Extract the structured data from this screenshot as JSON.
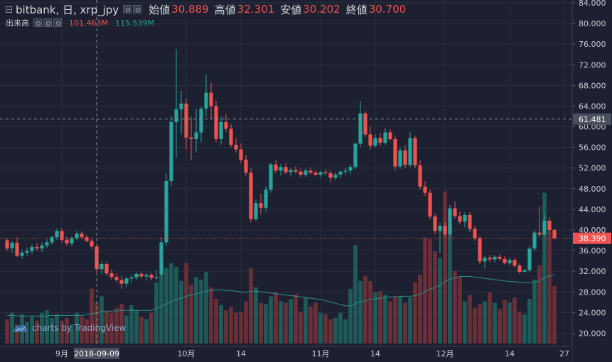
{
  "legend": {
    "symbol": "bitbank, 日, xrp_jpy",
    "open_label": "始値",
    "open_value": "30.889",
    "high_label": "高値",
    "high_value": "32.301",
    "low_label": "安値",
    "low_value": "30.202",
    "close_label": "終値",
    "close_value": "30.700",
    "volume_label": "出来高",
    "volume_value": "101.463M",
    "volume_ma_value": "115.539M"
  },
  "watermark": "charts by TradingView",
  "colors": {
    "background": "#1c2030",
    "up": "#26a69a",
    "down": "#ef5350",
    "grid": "#2a2f3f",
    "axis_text": "#c8cad2"
  },
  "chart_data": {
    "type": "candlestick",
    "price_axis": {
      "min": 18.0,
      "max": 84.0,
      "ticks": [
        "84.000",
        "80.000",
        "76.000",
        "72.000",
        "68.000",
        "64.000",
        "60.000",
        "56.000",
        "52.000",
        "48.000",
        "44.000",
        "40.000",
        "36.000",
        "32.000",
        "28.000",
        "24.000",
        "20.000"
      ]
    },
    "time_axis": {
      "ticks": [
        "9月",
        "10月",
        "14",
        "11月",
        "14",
        "12月",
        "14",
        "27"
      ]
    },
    "crosshair": {
      "date_label": "2018-09-09",
      "price_label": "61.481"
    },
    "last_price": "38.390",
    "series": [
      {
        "name": "price",
        "ohlc": [
          [
            38.0,
            38.4,
            36.0,
            36.4
          ],
          [
            36.5,
            37.8,
            35.6,
            37.5
          ],
          [
            37.5,
            38.6,
            34.8,
            35.0
          ],
          [
            35.0,
            36.2,
            34.4,
            35.6
          ],
          [
            35.6,
            36.6,
            35.0,
            35.9
          ],
          [
            35.9,
            37.2,
            35.3,
            36.7
          ],
          [
            36.7,
            37.5,
            36.0,
            36.4
          ],
          [
            36.4,
            37.6,
            35.8,
            37.0
          ],
          [
            37.0,
            38.2,
            36.5,
            37.6
          ],
          [
            37.6,
            38.9,
            37.2,
            38.6
          ],
          [
            38.6,
            40.2,
            38.1,
            39.8
          ],
          [
            39.8,
            40.4,
            37.6,
            38.1
          ],
          [
            38.1,
            38.7,
            37.0,
            37.4
          ],
          [
            37.4,
            38.8,
            36.9,
            38.4
          ],
          [
            38.4,
            39.8,
            38.0,
            39.3
          ],
          [
            39.3,
            39.7,
            38.2,
            38.6
          ],
          [
            38.6,
            39.1,
            37.6,
            37.9
          ],
          [
            37.9,
            38.4,
            36.3,
            36.8
          ],
          [
            36.8,
            37.4,
            31.6,
            32.4
          ],
          [
            32.4,
            33.9,
            31.4,
            33.4
          ],
          [
            33.4,
            33.9,
            31.1,
            31.6
          ],
          [
            31.6,
            32.4,
            30.4,
            30.9
          ],
          [
            30.9,
            31.6,
            29.9,
            30.3
          ],
          [
            30.3,
            31.1,
            28.6,
            29.6
          ],
          [
            29.6,
            30.9,
            29.0,
            30.6
          ],
          [
            30.6,
            31.3,
            29.9,
            30.8
          ],
          [
            30.8,
            31.8,
            30.4,
            31.5
          ],
          [
            31.5,
            31.9,
            30.6,
            31.0
          ],
          [
            31.0,
            31.6,
            30.2,
            31.3
          ],
          [
            31.3,
            31.7,
            30.2,
            30.7
          ],
          [
            30.7,
            32.3,
            30.2,
            30.9
          ],
          [
            31.3,
            38.6,
            30.8,
            37.6
          ],
          [
            37.6,
            51.0,
            36.9,
            49.5
          ],
          [
            49.5,
            62.0,
            48.5,
            60.9
          ],
          [
            60.9,
            75.0,
            54.0,
            63.4
          ],
          [
            63.4,
            67.0,
            58.5,
            64.5
          ],
          [
            64.5,
            65.5,
            55.5,
            57.9
          ],
          [
            57.9,
            62.0,
            53.5,
            57.6
          ],
          [
            57.6,
            63.5,
            55.0,
            58.9
          ],
          [
            58.9,
            64.0,
            57.0,
            63.5
          ],
          [
            63.5,
            70.0,
            62.0,
            66.6
          ],
          [
            66.6,
            68.5,
            61.5,
            64.0
          ],
          [
            64.0,
            65.0,
            57.0,
            57.6
          ],
          [
            57.6,
            62.0,
            56.5,
            60.9
          ],
          [
            60.9,
            62.5,
            59.0,
            59.6
          ],
          [
            59.6,
            60.5,
            56.0,
            56.5
          ],
          [
            56.5,
            57.8,
            55.0,
            55.6
          ],
          [
            55.6,
            56.8,
            53.0,
            53.6
          ],
          [
            53.6,
            54.5,
            50.5,
            51.1
          ],
          [
            51.1,
            52.0,
            41.5,
            42.1
          ],
          [
            42.1,
            46.0,
            41.8,
            45.2
          ],
          [
            45.2,
            47.0,
            43.0,
            44.3
          ],
          [
            44.3,
            48.5,
            43.5,
            47.8
          ],
          [
            47.8,
            53.0,
            47.2,
            52.7
          ],
          [
            52.7,
            53.5,
            51.0,
            51.5
          ],
          [
            51.5,
            52.8,
            50.5,
            52.2
          ],
          [
            52.2,
            53.0,
            50.8,
            51.2
          ],
          [
            51.2,
            52.0,
            50.4,
            51.6
          ],
          [
            51.6,
            52.4,
            50.9,
            51.3
          ],
          [
            51.3,
            51.9,
            50.2,
            50.7
          ],
          [
            50.7,
            51.9,
            50.3,
            51.5
          ],
          [
            51.5,
            52.1,
            50.8,
            51.1
          ],
          [
            51.1,
            51.6,
            50.4,
            50.7
          ],
          [
            50.7,
            51.5,
            50.1,
            51.2
          ],
          [
            51.2,
            51.8,
            50.6,
            51.0
          ],
          [
            51.0,
            51.5,
            49.3,
            50.1
          ],
          [
            50.1,
            51.2,
            49.6,
            50.7
          ],
          [
            50.7,
            51.6,
            50.0,
            51.3
          ],
          [
            51.3,
            52.0,
            50.7,
            51.5
          ],
          [
            51.5,
            52.6,
            50.9,
            52.2
          ],
          [
            52.2,
            57.0,
            51.8,
            56.7
          ],
          [
            56.7,
            65.0,
            56.0,
            62.6
          ],
          [
            62.6,
            63.0,
            58.0,
            58.5
          ],
          [
            58.5,
            60.0,
            55.5,
            56.3
          ],
          [
            56.3,
            58.6,
            56.0,
            57.8
          ],
          [
            57.8,
            58.8,
            56.3,
            56.9
          ],
          [
            56.9,
            59.8,
            56.5,
            58.9
          ],
          [
            58.9,
            59.5,
            57.2,
            57.6
          ],
          [
            57.6,
            58.2,
            51.5,
            52.3
          ],
          [
            52.3,
            56.0,
            51.8,
            55.4
          ],
          [
            55.4,
            56.4,
            52.0,
            52.6
          ],
          [
            52.6,
            59.0,
            52.2,
            57.8
          ],
          [
            57.8,
            58.2,
            52.0,
            52.5
          ],
          [
            52.5,
            53.5,
            47.8,
            48.4
          ],
          [
            48.4,
            49.5,
            46.6,
            47.2
          ],
          [
            47.2,
            47.9,
            42.0,
            42.6
          ],
          [
            42.6,
            43.2,
            39.2,
            39.8
          ],
          [
            39.8,
            41.4,
            35.5,
            40.8
          ],
          [
            40.8,
            41.5,
            38.6,
            39.2
          ],
          [
            39.2,
            44.9,
            38.8,
            44.2
          ],
          [
            44.2,
            45.5,
            42.2,
            42.7
          ],
          [
            42.7,
            43.6,
            41.1,
            41.6
          ],
          [
            41.6,
            43.4,
            40.5,
            42.9
          ],
          [
            42.9,
            43.5,
            39.6,
            40.2
          ],
          [
            40.2,
            40.8,
            37.9,
            38.4
          ],
          [
            38.4,
            38.9,
            33.4,
            33.9
          ],
          [
            33.9,
            35.0,
            32.5,
            34.6
          ],
          [
            34.6,
            35.2,
            33.8,
            34.3
          ],
          [
            34.3,
            35.1,
            33.7,
            34.8
          ],
          [
            34.8,
            35.3,
            34.0,
            34.4
          ],
          [
            34.4,
            34.9,
            33.3,
            33.6
          ],
          [
            33.6,
            34.6,
            33.1,
            34.2
          ],
          [
            34.2,
            34.6,
            32.8,
            33.1
          ],
          [
            33.1,
            33.5,
            31.5,
            31.9
          ],
          [
            31.9,
            32.5,
            31.7,
            32.2
          ],
          [
            32.2,
            36.9,
            31.9,
            36.4
          ],
          [
            36.4,
            40.0,
            36.0,
            39.5
          ],
          [
            39.5,
            44.6,
            38.6,
            39.1
          ],
          [
            39.1,
            43.0,
            38.8,
            41.8
          ],
          [
            41.8,
            42.5,
            39.4,
            40.0
          ],
          [
            40.0,
            40.3,
            38.2,
            38.39
          ]
        ]
      },
      {
        "name": "出来高",
        "values": [
          38,
          48,
          30,
          46,
          34,
          42,
          36,
          48,
          52,
          40,
          46,
          36,
          40,
          30,
          48,
          42,
          38,
          86,
          64,
          74,
          52,
          48,
          56,
          62,
          44,
          60,
          52,
          42,
          38,
          48,
          96,
          106,
          118,
          126,
          120,
          98,
          126,
          92,
          104,
          100,
          112,
          88,
          70,
          60,
          52,
          58,
          48,
          50,
          66,
          118,
          88,
          64,
          62,
          74,
          80,
          66,
          64,
          70,
          78,
          50,
          72,
          58,
          64,
          48,
          46,
          38,
          40,
          48,
          38,
          86,
          154,
          98,
          106,
          98,
          80,
          82,
          76,
          66,
          74,
          74,
          64,
          72,
          96,
          108,
          166,
          164,
          144,
          134,
          238,
          186,
          114,
          104,
          66,
          76,
          56,
          62,
          66,
          80,
          64,
          54,
          68,
          64,
          72,
          50,
          46,
          70,
          100,
          122,
          236,
          176,
          90
        ],
        "ma": [
          44,
          44,
          43,
          43,
          43,
          43,
          43,
          43,
          43,
          44,
          44,
          44,
          44,
          44,
          44,
          44,
          45,
          47,
          48,
          50,
          50,
          51,
          51,
          52,
          52,
          52,
          52,
          52,
          52,
          52,
          55,
          58,
          62,
          66,
          69,
          71,
          74,
          76,
          78,
          80,
          82,
          83,
          84,
          84,
          83,
          83,
          82,
          81,
          80,
          82,
          82,
          81,
          80,
          79,
          78,
          77,
          76,
          75,
          74,
          73,
          72,
          71,
          70,
          69,
          67,
          65,
          63,
          61,
          59,
          59,
          63,
          65,
          67,
          69,
          70,
          71,
          72,
          73,
          73,
          74,
          74,
          74,
          75,
          77,
          81,
          85,
          88,
          91,
          97,
          101,
          103,
          105,
          105,
          105,
          104,
          103,
          102,
          101,
          100,
          99,
          98,
          97,
          97,
          96,
          95,
          95,
          96,
          98,
          103,
          106,
          107
        ]
      }
    ]
  }
}
